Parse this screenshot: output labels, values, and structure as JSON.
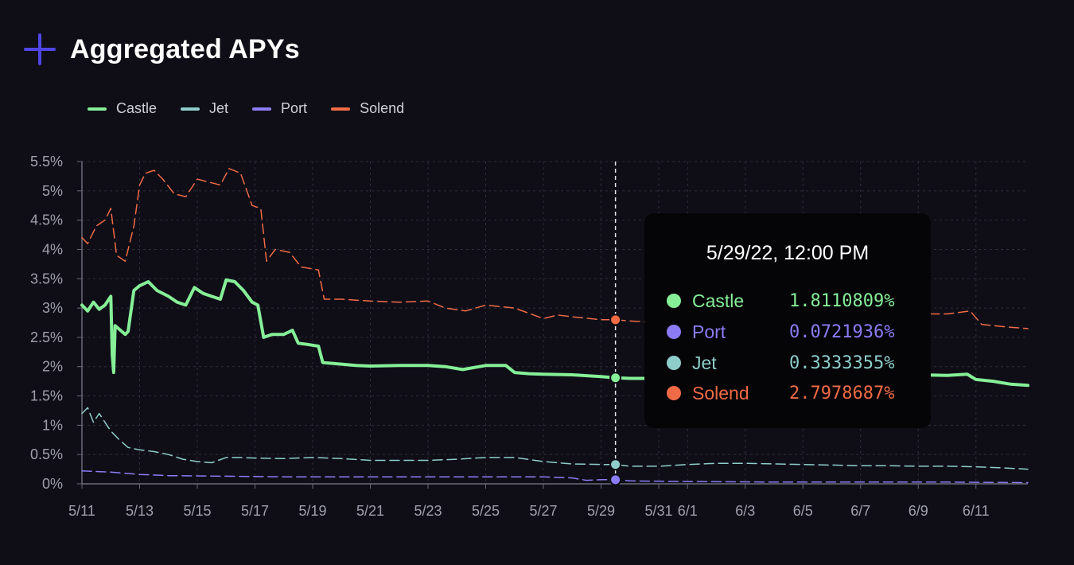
{
  "header": {
    "title": "Aggregated APYs",
    "logo_icon": "plus-cross-icon",
    "accent": "#4f46e5"
  },
  "tooltip": {
    "title": "5/29/22, 12:00 PM",
    "rows": [
      {
        "name": "Castle",
        "value": "1.8110809%",
        "color": "#86ef97"
      },
      {
        "name": "Port",
        "value": "0.0721936%",
        "color": "#8b7cf6"
      },
      {
        "name": "Jet",
        "value": "0.3333355%",
        "color": "#8ecdca"
      },
      {
        "name": "Solend",
        "value": "2.7978687%",
        "color": "#f06b45"
      }
    ]
  },
  "chart_data": {
    "type": "line",
    "title": "Aggregated APYs",
    "xlabel": "",
    "ylabel": "",
    "ylim": [
      0,
      5.5
    ],
    "xlim": [
      11,
      43.8
    ],
    "grid": true,
    "legend_position": "top-left",
    "y_ticks": [
      {
        "value": 0,
        "label": "0%"
      },
      {
        "value": 0.5,
        "label": "0.5%"
      },
      {
        "value": 1,
        "label": "1%"
      },
      {
        "value": 1.5,
        "label": "1.5%"
      },
      {
        "value": 2,
        "label": "2%"
      },
      {
        "value": 2.5,
        "label": "2.5%"
      },
      {
        "value": 3,
        "label": "3%"
      },
      {
        "value": 3.5,
        "label": "3.5%"
      },
      {
        "value": 4,
        "label": "4%"
      },
      {
        "value": 4.5,
        "label": "4.5%"
      },
      {
        "value": 5,
        "label": "5%"
      },
      {
        "value": 5.5,
        "label": "5.5%"
      }
    ],
    "x_ticks": [
      {
        "value": 11,
        "label": "5/11"
      },
      {
        "value": 13,
        "label": "5/13"
      },
      {
        "value": 15,
        "label": "5/15"
      },
      {
        "value": 17,
        "label": "5/17"
      },
      {
        "value": 19,
        "label": "5/19"
      },
      {
        "value": 21,
        "label": "5/21"
      },
      {
        "value": 23,
        "label": "5/23"
      },
      {
        "value": 25,
        "label": "5/25"
      },
      {
        "value": 27,
        "label": "5/27"
      },
      {
        "value": 29,
        "label": "5/29"
      },
      {
        "value": 31,
        "label": "5/31"
      },
      {
        "value": 32,
        "label": "6/1"
      },
      {
        "value": 34,
        "label": "6/3"
      },
      {
        "value": 36,
        "label": "6/5"
      },
      {
        "value": 38,
        "label": "6/7"
      },
      {
        "value": 40,
        "label": "6/9"
      },
      {
        "value": 42,
        "label": "6/11"
      }
    ],
    "hover_x": 29.5,
    "series": [
      {
        "name": "Castle",
        "color": "#86ef97",
        "style": "solid",
        "points": [
          [
            11,
            3.05
          ],
          [
            11.2,
            2.95
          ],
          [
            11.4,
            3.1
          ],
          [
            11.6,
            2.98
          ],
          [
            11.8,
            3.05
          ],
          [
            12.0,
            3.2
          ],
          [
            12.05,
            2.2
          ],
          [
            12.1,
            1.9
          ],
          [
            12.15,
            2.7
          ],
          [
            12.5,
            2.55
          ],
          [
            12.6,
            2.6
          ],
          [
            12.8,
            3.3
          ],
          [
            13.0,
            3.38
          ],
          [
            13.3,
            3.45
          ],
          [
            13.6,
            3.3
          ],
          [
            14.0,
            3.2
          ],
          [
            14.3,
            3.1
          ],
          [
            14.6,
            3.05
          ],
          [
            14.9,
            3.35
          ],
          [
            15.2,
            3.25
          ],
          [
            15.5,
            3.2
          ],
          [
            15.8,
            3.15
          ],
          [
            16.0,
            3.48
          ],
          [
            16.3,
            3.45
          ],
          [
            16.6,
            3.3
          ],
          [
            16.9,
            3.1
          ],
          [
            17.1,
            3.05
          ],
          [
            17.3,
            2.5
          ],
          [
            17.6,
            2.55
          ],
          [
            18.0,
            2.55
          ],
          [
            18.3,
            2.62
          ],
          [
            18.5,
            2.4
          ],
          [
            18.8,
            2.38
          ],
          [
            19.2,
            2.35
          ],
          [
            19.35,
            2.07
          ],
          [
            19.8,
            2.05
          ],
          [
            20.5,
            2.02
          ],
          [
            21,
            2.01
          ],
          [
            22,
            2.02
          ],
          [
            23,
            2.02
          ],
          [
            23.6,
            2.0
          ],
          [
            24.2,
            1.95
          ],
          [
            25,
            2.02
          ],
          [
            25.7,
            2.02
          ],
          [
            26,
            1.9
          ],
          [
            26.5,
            1.88
          ],
          [
            27,
            1.87
          ],
          [
            28,
            1.86
          ],
          [
            29,
            1.83
          ],
          [
            29.5,
            1.81
          ],
          [
            30,
            1.8
          ],
          [
            31,
            1.8
          ],
          [
            32,
            1.8
          ],
          [
            33,
            1.83
          ],
          [
            34,
            1.85
          ],
          [
            35,
            1.88
          ],
          [
            36,
            1.9
          ],
          [
            37,
            1.9
          ],
          [
            38,
            1.88
          ],
          [
            39,
            1.87
          ],
          [
            40,
            1.86
          ],
          [
            41,
            1.85
          ],
          [
            41.7,
            1.87
          ],
          [
            42,
            1.78
          ],
          [
            42.6,
            1.75
          ],
          [
            43.2,
            1.7
          ],
          [
            43.8,
            1.68
          ]
        ]
      },
      {
        "name": "Jet",
        "color": "#8ecdca",
        "style": "dashed",
        "points": [
          [
            11,
            1.2
          ],
          [
            11.2,
            1.3
          ],
          [
            11.4,
            1.05
          ],
          [
            11.6,
            1.2
          ],
          [
            12,
            0.9
          ],
          [
            12.3,
            0.75
          ],
          [
            12.6,
            0.62
          ],
          [
            13,
            0.58
          ],
          [
            13.5,
            0.55
          ],
          [
            14,
            0.5
          ],
          [
            14.5,
            0.42
          ],
          [
            15,
            0.38
          ],
          [
            15.5,
            0.36
          ],
          [
            16,
            0.45
          ],
          [
            16.5,
            0.45
          ],
          [
            17,
            0.44
          ],
          [
            18,
            0.43
          ],
          [
            19,
            0.45
          ],
          [
            20,
            0.43
          ],
          [
            21,
            0.4
          ],
          [
            22,
            0.4
          ],
          [
            23,
            0.4
          ],
          [
            24,
            0.42
          ],
          [
            25,
            0.45
          ],
          [
            26,
            0.45
          ],
          [
            27,
            0.38
          ],
          [
            28,
            0.34
          ],
          [
            29,
            0.33
          ],
          [
            29.5,
            0.33
          ],
          [
            30,
            0.3
          ],
          [
            31,
            0.3
          ],
          [
            32,
            0.33
          ],
          [
            33,
            0.35
          ],
          [
            34,
            0.35
          ],
          [
            35,
            0.34
          ],
          [
            36,
            0.33
          ],
          [
            37,
            0.32
          ],
          [
            38,
            0.31
          ],
          [
            39,
            0.31
          ],
          [
            40,
            0.3
          ],
          [
            41,
            0.3
          ],
          [
            42,
            0.29
          ],
          [
            43,
            0.27
          ],
          [
            43.8,
            0.25
          ]
        ]
      },
      {
        "name": "Port",
        "color": "#8b7cf6",
        "style": "dashed",
        "points": [
          [
            11,
            0.22
          ],
          [
            12,
            0.2
          ],
          [
            13,
            0.16
          ],
          [
            14,
            0.14
          ],
          [
            16,
            0.13
          ],
          [
            18,
            0.12
          ],
          [
            20,
            0.12
          ],
          [
            22,
            0.12
          ],
          [
            24,
            0.12
          ],
          [
            26,
            0.12
          ],
          [
            27,
            0.12
          ],
          [
            28,
            0.1
          ],
          [
            28.5,
            0.06
          ],
          [
            29,
            0.07
          ],
          [
            29.5,
            0.07
          ],
          [
            30,
            0.05
          ],
          [
            32,
            0.04
          ],
          [
            35,
            0.03
          ],
          [
            38,
            0.03
          ],
          [
            41,
            0.03
          ],
          [
            43.8,
            0.02
          ]
        ]
      },
      {
        "name": "Solend",
        "color": "#f06b45",
        "style": "dashed",
        "points": [
          [
            11,
            4.2
          ],
          [
            11.2,
            4.1
          ],
          [
            11.5,
            4.4
          ],
          [
            11.8,
            4.5
          ],
          [
            12.0,
            4.7
          ],
          [
            12.2,
            3.9
          ],
          [
            12.5,
            3.8
          ],
          [
            12.8,
            4.4
          ],
          [
            13.0,
            5.1
          ],
          [
            13.2,
            5.3
          ],
          [
            13.5,
            5.35
          ],
          [
            13.8,
            5.2
          ],
          [
            14.2,
            4.95
          ],
          [
            14.6,
            4.9
          ],
          [
            15.0,
            5.2
          ],
          [
            15.4,
            5.15
          ],
          [
            15.8,
            5.1
          ],
          [
            16.1,
            5.38
          ],
          [
            16.5,
            5.3
          ],
          [
            16.9,
            4.75
          ],
          [
            17.2,
            4.7
          ],
          [
            17.4,
            3.8
          ],
          [
            17.7,
            4.0
          ],
          [
            18.2,
            3.95
          ],
          [
            18.6,
            3.7
          ],
          [
            19.2,
            3.65
          ],
          [
            19.4,
            3.15
          ],
          [
            20,
            3.15
          ],
          [
            21,
            3.12
          ],
          [
            22,
            3.1
          ],
          [
            23,
            3.12
          ],
          [
            23.6,
            3.0
          ],
          [
            24.3,
            2.95
          ],
          [
            25,
            3.05
          ],
          [
            26,
            3.0
          ],
          [
            27,
            2.82
          ],
          [
            27.5,
            2.88
          ],
          [
            28,
            2.85
          ],
          [
            29,
            2.8
          ],
          [
            29.5,
            2.8
          ],
          [
            30,
            2.78
          ],
          [
            31,
            2.75
          ],
          [
            32,
            2.76
          ],
          [
            33,
            2.85
          ],
          [
            34,
            2.9
          ],
          [
            35,
            2.95
          ],
          [
            36,
            2.98
          ],
          [
            37,
            2.95
          ],
          [
            38,
            2.95
          ],
          [
            39,
            2.92
          ],
          [
            40,
            2.9
          ],
          [
            41,
            2.9
          ],
          [
            41.8,
            2.95
          ],
          [
            42.2,
            2.72
          ],
          [
            43,
            2.68
          ],
          [
            43.8,
            2.65
          ]
        ]
      }
    ]
  }
}
